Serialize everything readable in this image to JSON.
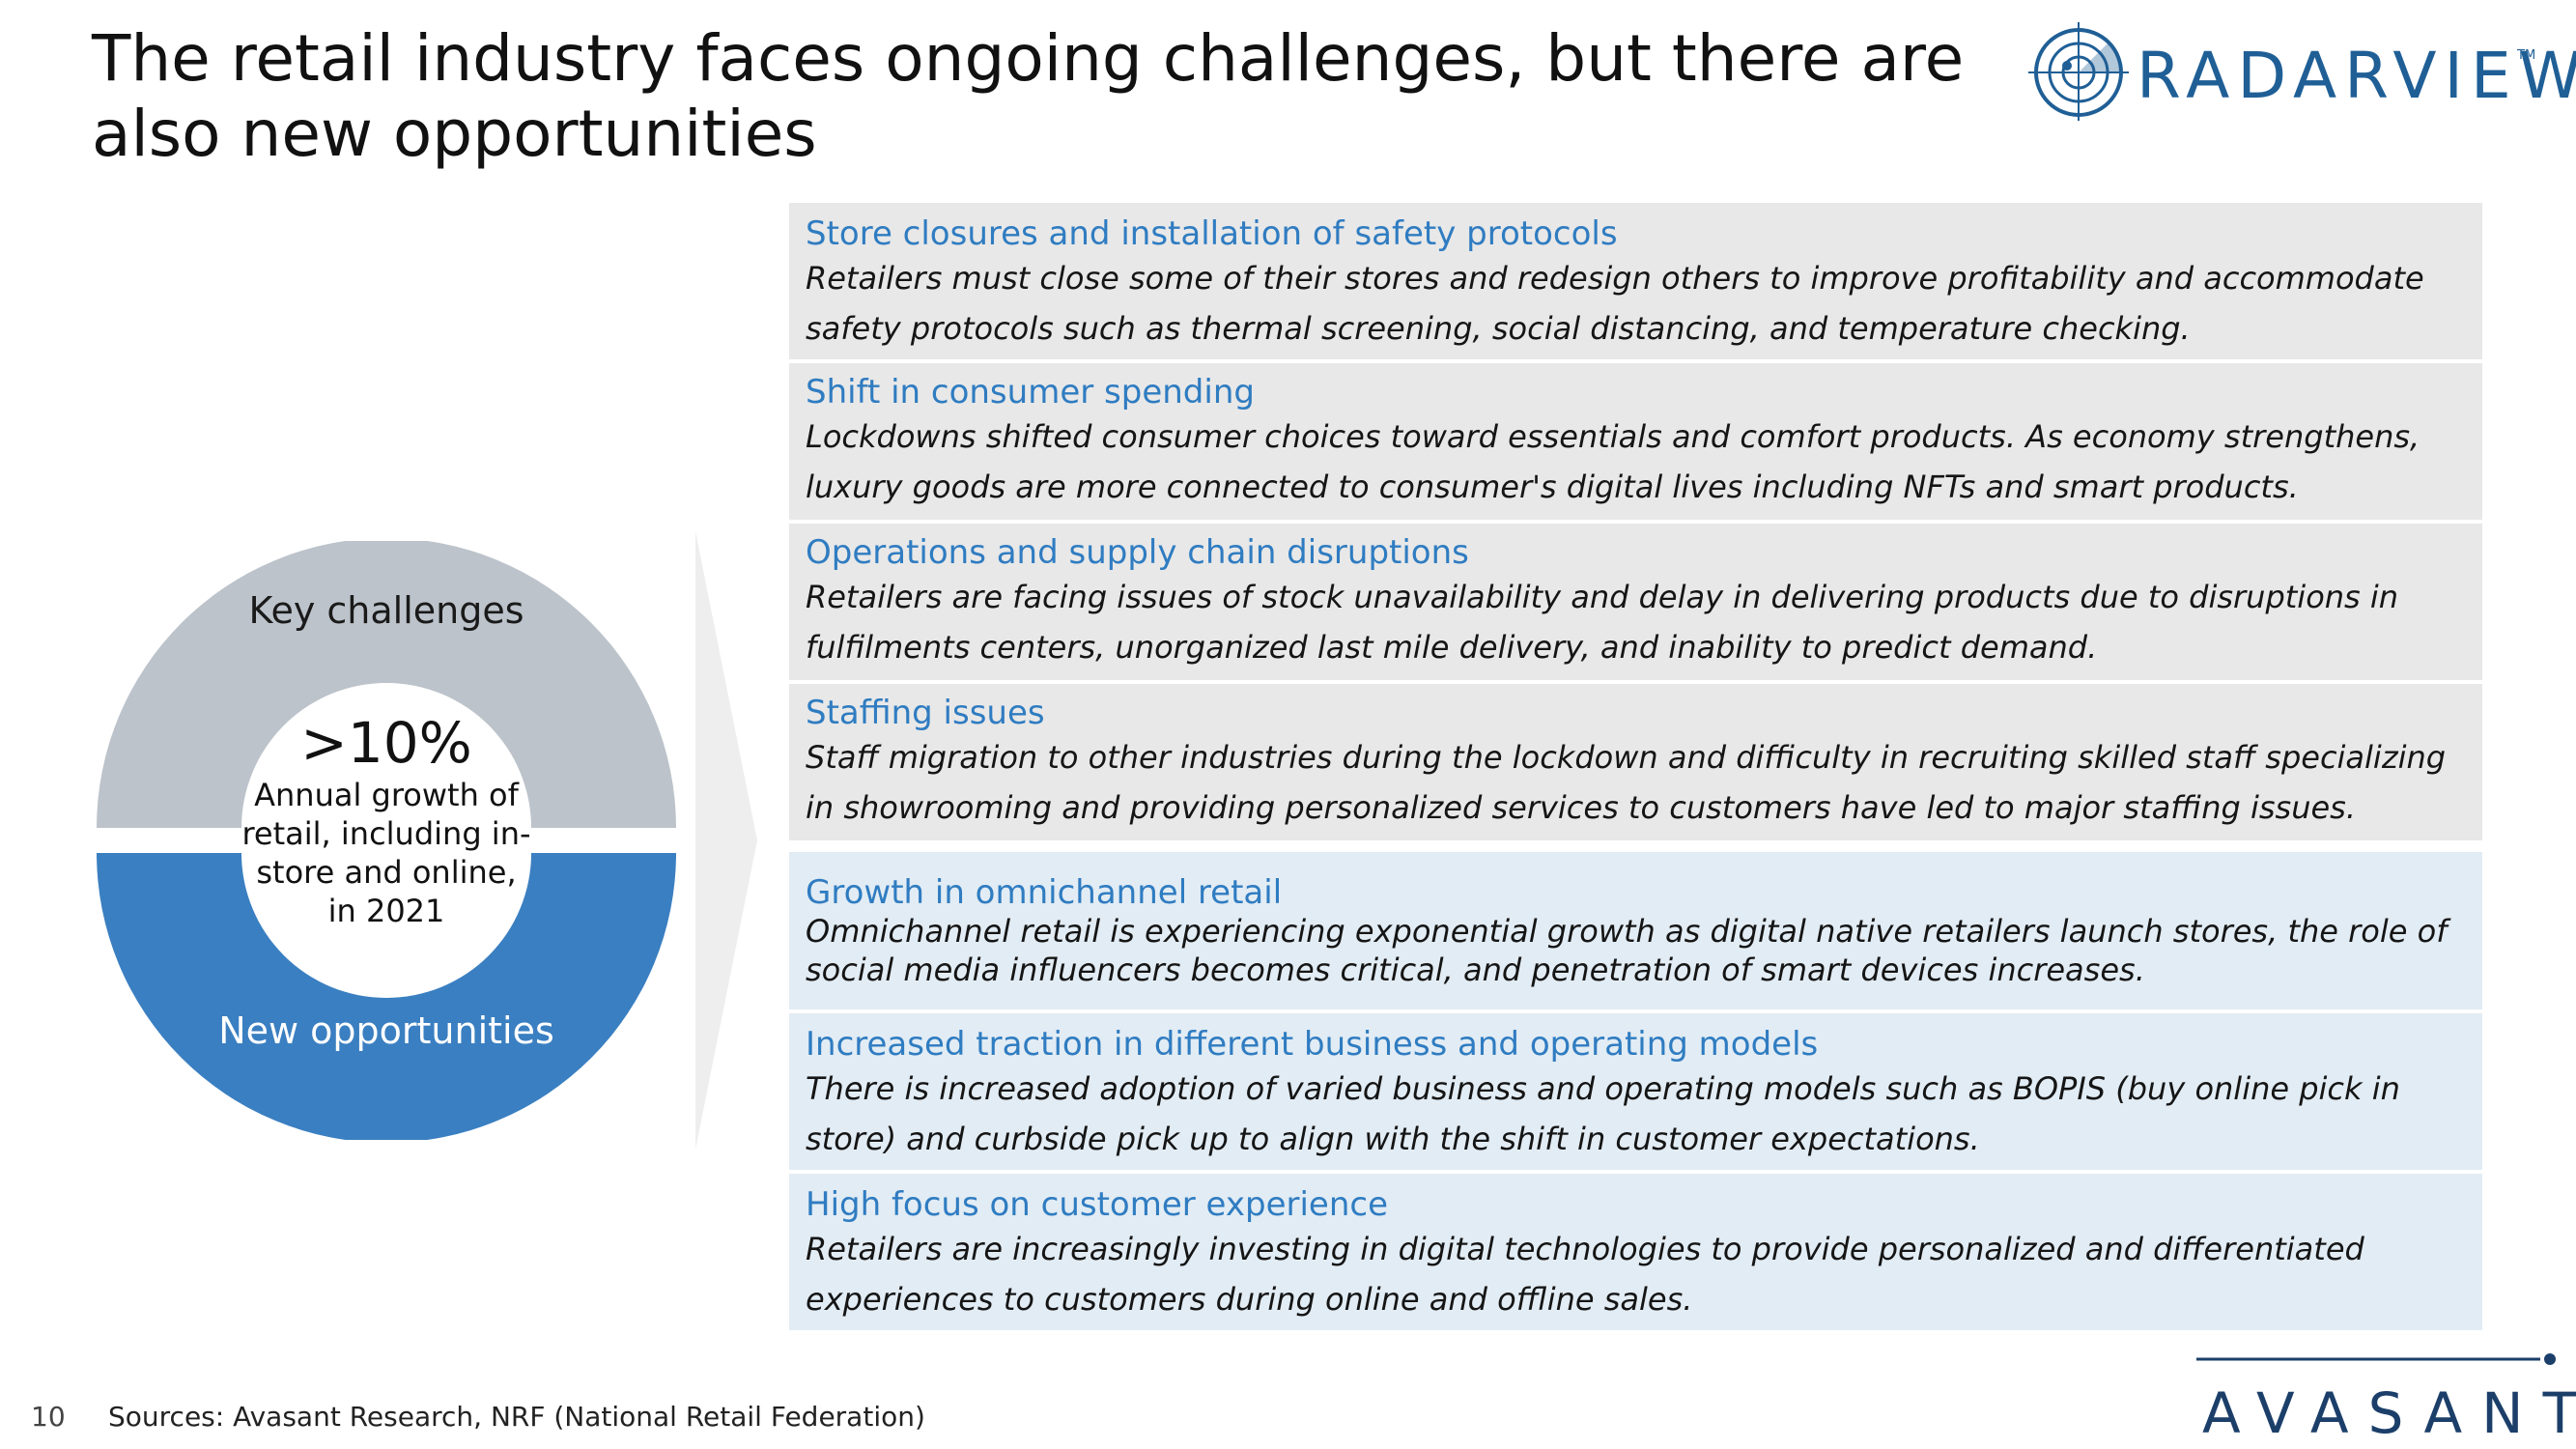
{
  "title": "The retail industry faces ongoing challenges, but there are also new opportunities",
  "brand": {
    "radarview": "RADARVIEW",
    "radarview_tm": "TM",
    "avasant": "AVASANT"
  },
  "donut": {
    "top_label": "Key challenges",
    "bottom_label": "New opportunities",
    "stat": ">10%",
    "stat_description": "Annual growth of retail, including in-store and online, in 2021",
    "top_color": "#bcc3ca",
    "bottom_color": "#3a7fc1"
  },
  "challenges": [
    {
      "heading": "Store closures and installation of safety protocols",
      "body": "Retailers must close some of their stores and redesign others to improve profitability and accommodate safety protocols such as thermal screening, social distancing, and temperature checking."
    },
    {
      "heading": "Shift in consumer spending",
      "body": "Lockdowns shifted consumer choices toward essentials and comfort products. As economy strengthens, luxury goods are more connected to consumer's digital lives including NFTs and smart products."
    },
    {
      "heading": "Operations and supply chain disruptions",
      "body": "Retailers are facing issues of stock unavailability and delay in delivering products due to disruptions in fulfilments centers, unorganized last mile delivery, and inability to predict demand."
    },
    {
      "heading": "Staffing issues",
      "body": "Staff migration to other industries during the lockdown and difficulty in recruiting skilled staff specializing in showrooming and providing personalized services to customers have led to major staffing issues."
    }
  ],
  "opportunities": [
    {
      "heading": "Growth in omnichannel retail",
      "body": "Omnichannel retail is experiencing exponential growth as digital native retailers launch stores, the role of social media influencers becomes critical, and penetration of smart devices increases."
    },
    {
      "heading": "Increased traction in different business and operating models",
      "body": "There is increased adoption of varied business and operating models such as BOPIS (buy online pick in store) and curbside pick up to align with the shift in customer expectations."
    },
    {
      "heading": "High focus on customer experience",
      "body": "Retailers are increasingly investing in digital technologies to provide personalized and differentiated experiences to customers during online and offline sales."
    }
  ],
  "footer": {
    "page_number": "10",
    "sources": "Sources: Avasant Research, NRF (National Retail Federation)"
  }
}
